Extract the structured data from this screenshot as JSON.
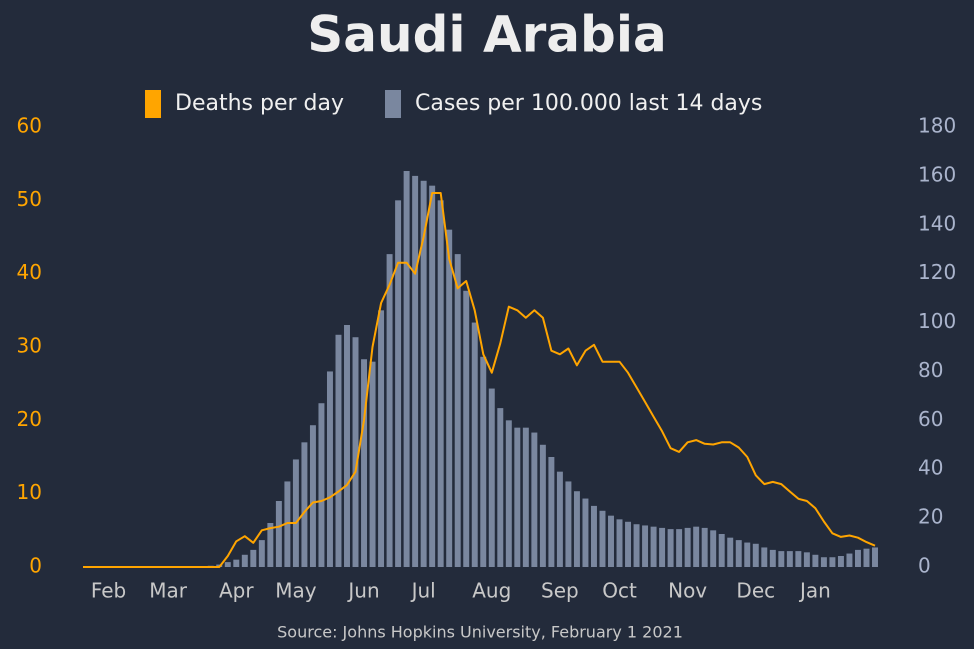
{
  "chart_data": {
    "type": "combo",
    "title": "Saudi Arabia",
    "source": "Source: Johns Hopkins University, February 1 2021",
    "categories": [
      null,
      null,
      null,
      "Feb",
      null,
      null,
      null,
      null,
      null,
      null,
      "Mar",
      null,
      null,
      null,
      null,
      null,
      null,
      null,
      "Apr",
      null,
      null,
      null,
      null,
      null,
      null,
      "May",
      null,
      null,
      null,
      null,
      null,
      null,
      null,
      "Jun",
      null,
      null,
      null,
      null,
      null,
      null,
      "Jul",
      null,
      null,
      null,
      null,
      null,
      null,
      null,
      "Aug",
      null,
      null,
      null,
      null,
      null,
      null,
      null,
      "Sep",
      null,
      null,
      null,
      null,
      null,
      null,
      "Oct",
      null,
      null,
      null,
      null,
      null,
      null,
      null,
      "Nov",
      null,
      null,
      null,
      null,
      null,
      null,
      null,
      "Dec",
      null,
      null,
      null,
      null,
      null,
      null,
      "Jan",
      null,
      null,
      null,
      null,
      null,
      null,
      null
    ],
    "series": [
      {
        "name": "Deaths per day",
        "type": "line",
        "color": "#ffa500",
        "values": [
          0,
          0,
          0,
          0,
          0,
          0,
          0,
          0,
          0,
          0,
          0,
          0,
          0,
          0,
          0,
          0,
          0,
          1.5,
          3.5,
          4.2,
          3.3,
          5,
          5.3,
          5.5,
          6,
          6,
          7.5,
          8.8,
          9,
          9.5,
          10.3,
          11.2,
          13,
          20,
          30,
          36,
          38.5,
          41.5,
          41.5,
          40,
          45,
          51,
          51,
          42,
          38,
          39,
          35,
          29,
          26.5,
          30.5,
          35.5,
          35,
          34,
          35,
          34,
          29.5,
          29,
          29.8,
          27.5,
          29.5,
          30.3,
          28,
          28,
          28,
          26.5,
          24.5,
          22.5,
          20.5,
          18.5,
          16.2,
          15.7,
          17,
          17.3,
          16.8,
          16.7,
          17,
          17,
          16.3,
          15,
          12.5,
          11.3,
          11.6,
          11.3,
          10.3,
          9.3,
          9,
          8,
          6.2,
          4.6,
          4.1,
          4.3,
          4,
          3.4,
          2.9
        ]
      },
      {
        "name": "Cases per 100.000 last 14 days",
        "type": "bar",
        "axis": "y2",
        "color": "#7a879f",
        "values": [
          0,
          0,
          0,
          0,
          0,
          0,
          0,
          0,
          0,
          0,
          0,
          0,
          0,
          0,
          0.2,
          0.5,
          1,
          2,
          3,
          5,
          7,
          11,
          18,
          27,
          35,
          44,
          51,
          58,
          67,
          80,
          95,
          99,
          94,
          85,
          84,
          105,
          128,
          150,
          162,
          160,
          158,
          156,
          150,
          138,
          128,
          113,
          100,
          86,
          73,
          65,
          60,
          57,
          57,
          55,
          50,
          45,
          39,
          35,
          31,
          28,
          25,
          23,
          21,
          19.5,
          18.5,
          17.5,
          17,
          16.5,
          16,
          15.5,
          15.5,
          16,
          16.5,
          16,
          15,
          13.5,
          12,
          11,
          10,
          9.5,
          8,
          7,
          6.5,
          6.5,
          6.5,
          6,
          5,
          4,
          4,
          4.5,
          5.5,
          7,
          7.5,
          8
        ]
      }
    ],
    "ylim": [
      0,
      60
    ],
    "yticks": [
      0,
      10,
      20,
      30,
      40,
      50,
      60
    ],
    "y2lim": [
      0,
      180
    ],
    "y2ticks": [
      0,
      20,
      40,
      60,
      80,
      100,
      120,
      140,
      160,
      180
    ],
    "grid": false,
    "legend": "top"
  }
}
